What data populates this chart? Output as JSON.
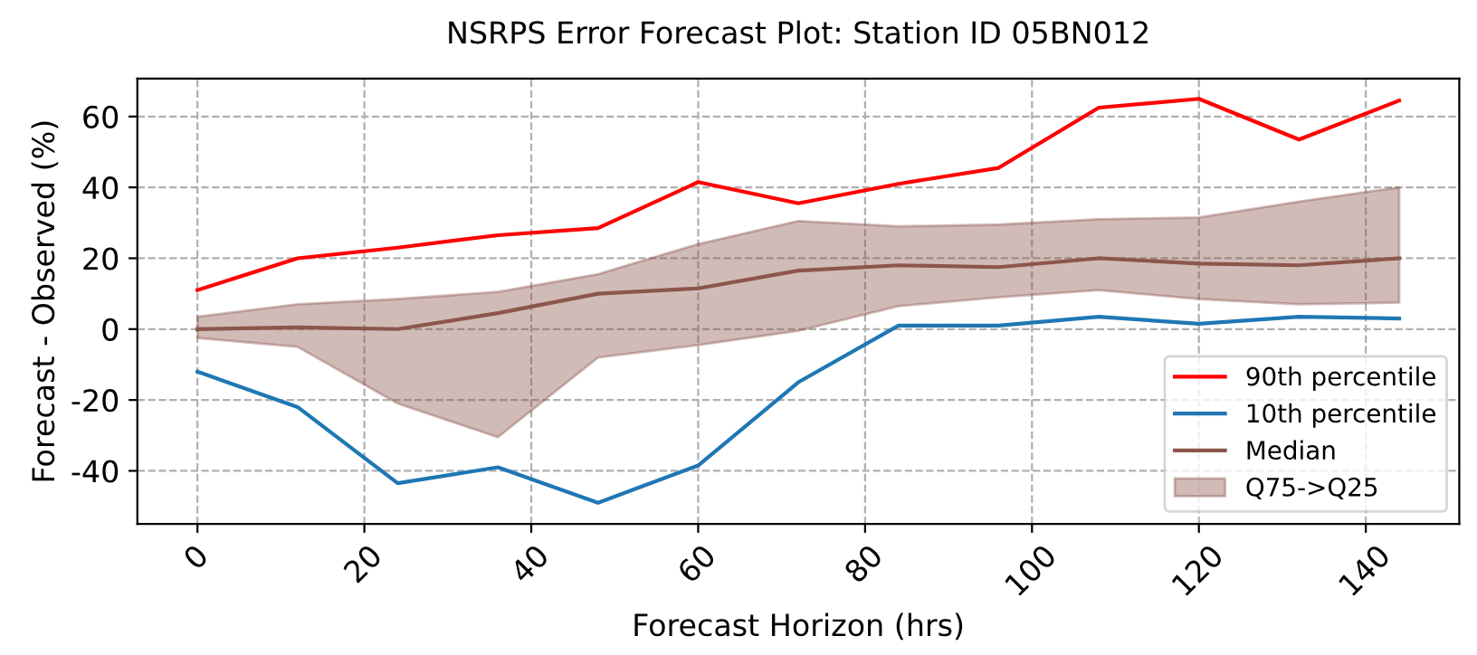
{
  "chart_data": {
    "type": "line",
    "title": "NSRPS Error Forecast Plot: Station ID 05BN012",
    "xlabel": "Forecast Horizon (hrs)",
    "ylabel": "Forecast - Observed (%)",
    "x": [
      0,
      12,
      24,
      36,
      48,
      60,
      72,
      84,
      96,
      108,
      120,
      132,
      144
    ],
    "series": [
      {
        "name": "90th percentile",
        "color": "#ff0000",
        "values": [
          11,
          20,
          23,
          26.5,
          28.5,
          41.5,
          35.5,
          41,
          45.5,
          62.5,
          65,
          53.5,
          64.5
        ]
      },
      {
        "name": "10th percentile",
        "color": "#1f77b4",
        "values": [
          -12,
          -22,
          -43.5,
          -39,
          -49,
          -38.5,
          -15,
          1,
          1,
          3.5,
          1.5,
          3.5,
          3
        ]
      },
      {
        "name": "Median",
        "color": "#8c564b",
        "values": [
          0,
          0.5,
          0,
          4.5,
          10,
          11.5,
          16.5,
          18,
          17.5,
          20,
          18.5,
          18,
          20
        ],
        "lower": [
          -2.5,
          -5,
          -21,
          -30.5,
          -8,
          -4.5,
          -0.5,
          6.5,
          9,
          11,
          8.5,
          7,
          7.5
        ],
        "upper": [
          3.5,
          7,
          8.5,
          10.5,
          15.5,
          24,
          30.5,
          29,
          29.5,
          31,
          31.5,
          36,
          40
        ]
      }
    ],
    "annotations": [
      "Q75->Q25"
    ],
    "xlim": [
      -7.2,
      151.2
    ],
    "xticks": [
      0,
      20,
      40,
      60,
      80,
      100,
      120,
      140
    ],
    "ylim": [
      -55,
      70.7
    ],
    "yticks": [
      -40,
      -20,
      0,
      20,
      40,
      60
    ],
    "grid": true,
    "legend": "bottom right",
    "line_style": "solid",
    "marker": "none"
  }
}
